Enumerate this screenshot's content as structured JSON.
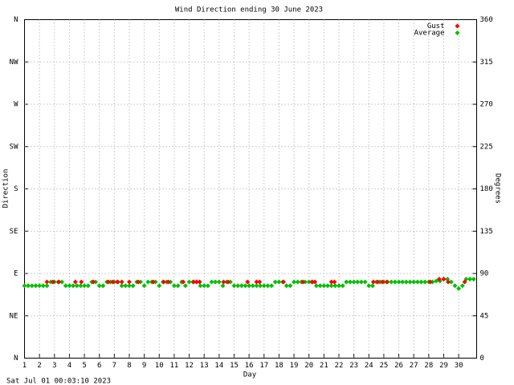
{
  "chart_data": {
    "type": "scatter",
    "title": "Wind Direction ending 30 June 2023",
    "x_label": "Day",
    "y_label": "Direction",
    "y2_label": "Degrees",
    "footer": "Sat Jul 01 00:03:10 2023",
    "xlim": [
      1,
      31.2
    ],
    "xticks": [
      1,
      2,
      3,
      4,
      5,
      6,
      7,
      8,
      9,
      10,
      11,
      12,
      13,
      14,
      15,
      16,
      17,
      18,
      19,
      20,
      21,
      22,
      23,
      24,
      25,
      26,
      27,
      28,
      29,
      30
    ],
    "ylim": [
      0,
      360
    ],
    "yticks": [
      {
        "value": 0,
        "label": "N"
      },
      {
        "value": 45,
        "label": "NE"
      },
      {
        "value": 90,
        "label": "E"
      },
      {
        "value": 135,
        "label": "SE"
      },
      {
        "value": 180,
        "label": "S"
      },
      {
        "value": 225,
        "label": "SW"
      },
      {
        "value": 270,
        "label": "W"
      },
      {
        "value": 315,
        "label": "NW"
      },
      {
        "value": 360,
        "label": "N"
      }
    ],
    "y2lim": [
      0,
      360
    ],
    "y2ticks": [
      0,
      45,
      90,
      135,
      180,
      225,
      270,
      315,
      360
    ],
    "grid": true,
    "legend": "top-right",
    "series": [
      {
        "name": "Gust",
        "color": "#ff0000",
        "x": [
          2.5,
          2.9,
          3.3,
          4.4,
          4.8,
          5.6,
          6.6,
          6.9,
          7.2,
          7.5,
          8.0,
          8.6,
          9.6,
          10.3,
          10.6,
          11.6,
          12.3,
          12.5,
          12.7,
          14.3,
          14.6,
          15.9,
          16.5,
          16.7,
          18.3,
          19.6,
          20.2,
          20.4,
          21.5,
          21.7,
          24.3,
          24.6,
          24.9,
          25.2,
          28.1,
          28.7,
          29.0,
          29.3,
          30.4
        ],
        "values": [
          81,
          81,
          81,
          81,
          81,
          81,
          81,
          81,
          81,
          81,
          81,
          81,
          81,
          81,
          81,
          81,
          81,
          81,
          81,
          81,
          81,
          81,
          81,
          81,
          81,
          81,
          81,
          81,
          81,
          81,
          81,
          81,
          81,
          81,
          81,
          84,
          84,
          81,
          81
        ]
      },
      {
        "name": "Average",
        "color": "#00c000",
        "x": [
          1,
          1.25,
          1.5,
          1.75,
          2,
          2.25,
          2.5,
          2.75,
          3,
          3.25,
          3.5,
          3.75,
          4,
          4.25,
          4.5,
          4.75,
          5,
          5.25,
          5.5,
          5.75,
          6,
          6.25,
          6.5,
          6.75,
          7,
          7.25,
          7.5,
          7.75,
          8,
          8.25,
          8.5,
          8.75,
          9,
          9.25,
          9.5,
          9.75,
          10,
          10.25,
          10.5,
          10.75,
          11,
          11.25,
          11.5,
          11.75,
          12,
          12.25,
          12.5,
          12.75,
          13,
          13.25,
          13.5,
          13.75,
          14,
          14.25,
          14.5,
          14.75,
          15,
          15.25,
          15.5,
          15.75,
          16,
          16.25,
          16.5,
          16.75,
          17,
          17.25,
          17.5,
          17.75,
          18,
          18.25,
          18.5,
          18.75,
          19,
          19.25,
          19.5,
          19.75,
          20,
          20.25,
          20.5,
          20.75,
          21,
          21.25,
          21.5,
          21.75,
          22,
          22.25,
          22.5,
          22.75,
          23,
          23.25,
          23.5,
          23.75,
          24,
          24.25,
          24.5,
          24.75,
          25,
          25.25,
          25.5,
          25.75,
          26,
          26.25,
          26.5,
          26.75,
          27,
          27.25,
          27.5,
          27.75,
          28,
          28.25,
          28.5,
          28.75,
          29,
          29.25,
          29.5,
          29.75,
          30,
          30.25,
          30.5,
          30.75,
          31
        ],
        "values": [
          77,
          77,
          77,
          77,
          77,
          77,
          77,
          81,
          81,
          81,
          81,
          77,
          77,
          77,
          77,
          77,
          77,
          77,
          81,
          81,
          77,
          77,
          81,
          81,
          81,
          81,
          77,
          77,
          77,
          77,
          81,
          81,
          77,
          81,
          81,
          81,
          77,
          81,
          81,
          81,
          77,
          77,
          81,
          77,
          81,
          81,
          81,
          77,
          77,
          77,
          81,
          81,
          81,
          77,
          81,
          81,
          77,
          77,
          77,
          77,
          77,
          77,
          77,
          77,
          77,
          77,
          77,
          81,
          81,
          81,
          77,
          77,
          81,
          81,
          81,
          81,
          81,
          81,
          77,
          77,
          77,
          77,
          77,
          77,
          77,
          77,
          81,
          81,
          81,
          81,
          81,
          81,
          77,
          77,
          81,
          81,
          81,
          81,
          81,
          81,
          81,
          81,
          81,
          81,
          81,
          81,
          81,
          81,
          81,
          81,
          82,
          82,
          84,
          84,
          81,
          77,
          74,
          77,
          84,
          84,
          84
        ]
      }
    ]
  }
}
